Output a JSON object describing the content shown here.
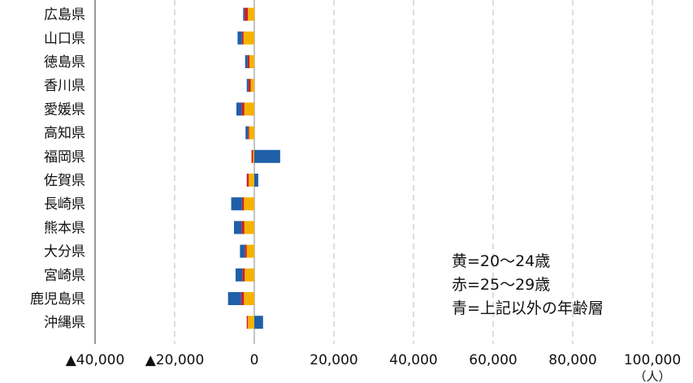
{
  "chart_data": {
    "type": "bar",
    "orientation": "horizontal",
    "stacked": true,
    "categories": [
      "広島県",
      "山口県",
      "徳島県",
      "香川県",
      "愛媛県",
      "高知県",
      "福岡県",
      "佐賀県",
      "長崎県",
      "熊本県",
      "大分県",
      "宮崎県",
      "鹿児島県",
      "沖縄県"
    ],
    "series": [
      {
        "name": "黄=20～24歳",
        "color": "#f5b301",
        "values": [
          -1600,
          -2700,
          -1200,
          -900,
          -2500,
          -1300,
          -300,
          -1400,
          -2600,
          -2500,
          -1900,
          -2400,
          -2600,
          -1600
        ]
      },
      {
        "name": "赤=25～29歳",
        "color": "#c8202a",
        "values": [
          -900,
          -400,
          -500,
          -600,
          -700,
          -300,
          -400,
          -500,
          -500,
          -700,
          -500,
          -600,
          -700,
          -300
        ]
      },
      {
        "name": "青=上記以外の年齢層",
        "color": "#1f5fa8",
        "values": [
          -300,
          -1100,
          -600,
          -400,
          -1300,
          -600,
          6500,
          1000,
          -2700,
          -1900,
          -1200,
          -1700,
          -3300,
          2200
        ]
      }
    ],
    "xlim": [
      -40000,
      100000
    ],
    "xticks": [
      -40000,
      -20000,
      0,
      20000,
      40000,
      60000,
      80000,
      100000
    ],
    "xtick_labels": [
      "▲40,000",
      "▲20,000",
      "0",
      "20,000",
      "40,000",
      "60,000",
      "80,000",
      "100,000"
    ],
    "x_unit_label": "（人）",
    "grid": true,
    "legend_text": [
      "黄=20～24歳",
      "赤=25～29歳",
      "青=上記以外の年齢層"
    ],
    "legend_position": "bottom-right"
  }
}
